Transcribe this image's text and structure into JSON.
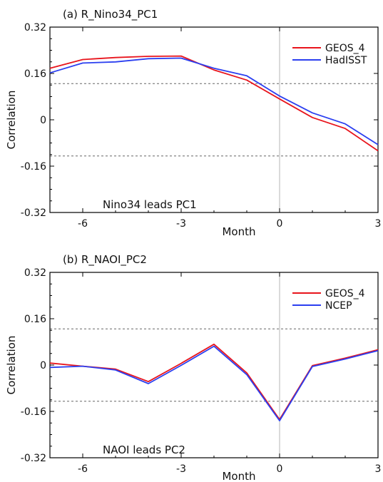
{
  "chart_data": [
    {
      "type": "line",
      "title": "(a)  R_Nino34_PC1",
      "xlabel": "Month",
      "ylabel": "Correlation",
      "annotation": "Nino34  leads  PC1",
      "xlim": [
        -7,
        3
      ],
      "ylim": [
        -0.32,
        0.32
      ],
      "xticks": [
        -6,
        -3,
        0,
        3
      ],
      "xtick_labels": [
        "-6",
        "-3",
        "0",
        "3"
      ],
      "yticks": [
        -0.32,
        -0.16,
        0,
        0.16,
        0.32
      ],
      "ytick_labels": [
        "-0.32",
        "-0.16",
        "0",
        "0.16",
        "0.32"
      ],
      "significance_levels": [
        0.125,
        -0.125
      ],
      "zero_line_x": 0,
      "legend_position": "top-right",
      "x": [
        -7,
        -6,
        -5,
        -4,
        -3,
        -2,
        -1,
        0,
        1,
        2,
        3
      ],
      "series": [
        {
          "name": "GEOS_4",
          "color": "#e8141c",
          "values": [
            0.178,
            0.208,
            0.215,
            0.219,
            0.22,
            0.172,
            0.137,
            0.072,
            0.008,
            -0.03,
            -0.107
          ]
        },
        {
          "name": "HadISST",
          "color": "#2b3ff0",
          "values": [
            0.162,
            0.196,
            0.2,
            0.211,
            0.213,
            0.178,
            0.152,
            0.082,
            0.024,
            -0.014,
            -0.086
          ]
        }
      ]
    },
    {
      "type": "line",
      "title": "(b)  R_NAOI_PC2",
      "xlabel": "Month",
      "ylabel": "Correlation",
      "annotation": "NAOI  leads  PC2",
      "xlim": [
        -7,
        3
      ],
      "ylim": [
        -0.32,
        0.32
      ],
      "xticks": [
        -6,
        -3,
        0,
        3
      ],
      "xtick_labels": [
        "-6",
        "-3",
        "0",
        "3"
      ],
      "yticks": [
        -0.32,
        -0.16,
        0,
        0.16,
        0.32
      ],
      "ytick_labels": [
        "-0.32",
        "-0.16",
        "0",
        "0.16",
        "0.32"
      ],
      "significance_levels": [
        0.125,
        -0.125
      ],
      "zero_line_x": 0,
      "legend_position": "top-right",
      "x": [
        -7,
        -6,
        -5,
        -4,
        -3,
        -2,
        -1,
        0,
        1,
        2,
        3
      ],
      "series": [
        {
          "name": "GEOS_4",
          "color": "#e8141c",
          "values": [
            0.007,
            -0.004,
            -0.014,
            -0.057,
            0.006,
            0.072,
            -0.027,
            -0.188,
            -0.002,
            0.024,
            0.053
          ]
        },
        {
          "name": "NCEP",
          "color": "#2b3ff0",
          "values": [
            -0.008,
            -0.004,
            -0.017,
            -0.064,
            -0.001,
            0.065,
            -0.033,
            -0.192,
            -0.005,
            0.021,
            0.05
          ]
        }
      ]
    }
  ]
}
